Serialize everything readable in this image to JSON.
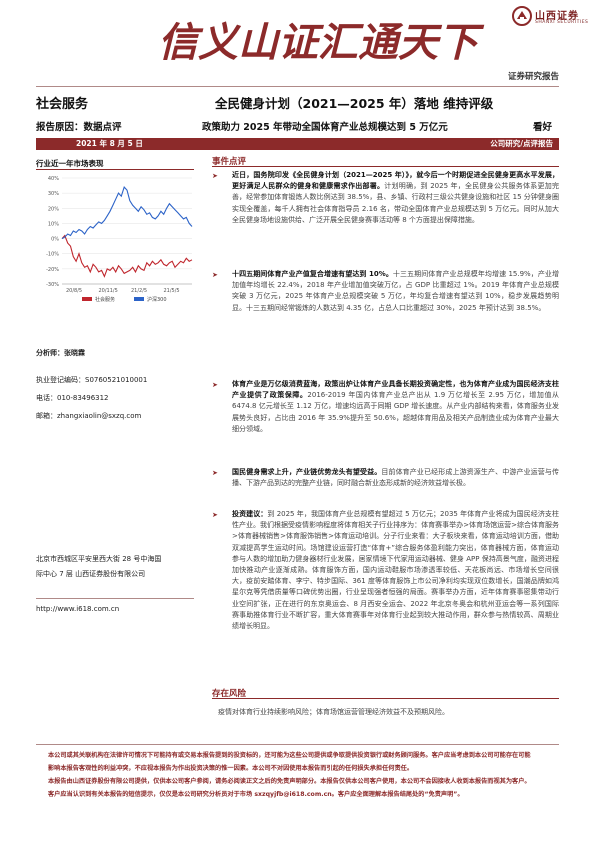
{
  "header": {
    "brand_cn": "山西证券",
    "brand_en": "SHANXI SECURITIES",
    "slogan": "信义山证汇通天下",
    "report_type": "证券研究报告"
  },
  "report": {
    "industry": "社会服务",
    "title": "全民健身计划（2021—2025 年）落地  维持评级",
    "reason": "报告原因：数据点评",
    "subtitle": "政策助力 2025 年带动全国体育产业总规模达到 5 万亿元",
    "rating": "看好",
    "date": "2021 年 8 月 5 日",
    "dept": "公司研究/点评报告"
  },
  "sidebar": {
    "chart_title": "行业近一年市场表现",
    "analyst_label": "分析师：",
    "analyst_name": "张晓霖",
    "cert_label": "执业登记编码：",
    "cert_no": "S0760521010001",
    "phone_label": "电话：",
    "phone": "010-83496312",
    "email_label": "邮箱：",
    "email": "zhangxiaolin@sxzq.com",
    "address_line1": "北京市西城区平安里西大街 28 号中海国",
    "address_line2": "际中心 7 层  山西证券股份有限公司",
    "website": "http://www.i618.com.cn"
  },
  "chart_data": {
    "type": "line",
    "x_ticks": [
      "20/8/5",
      "20/11/5",
      "21/2/5",
      "21/5/5"
    ],
    "y_ticks": [
      "40%",
      "30%",
      "20%",
      "10%",
      "0%",
      "-10%",
      "-20%",
      "-30%"
    ],
    "ylim": [
      -30,
      40
    ],
    "series": [
      {
        "name": "社会服务",
        "color": "#c0262d",
        "values": [
          0,
          2,
          -3,
          -5,
          -12,
          -15,
          -10,
          -16,
          -19,
          -18,
          -22,
          -17,
          -19,
          -22,
          -21,
          -25,
          -20,
          -21,
          -19,
          -22,
          -18,
          -20,
          -23,
          -22,
          -21,
          -19,
          -22,
          -18,
          -20,
          -21,
          -16,
          -18,
          -15,
          -17,
          -16,
          -14,
          -17,
          -18,
          -16,
          -15,
          -19,
          -17,
          -15,
          -16,
          -13,
          -15,
          -14
        ]
      },
      {
        "name": "沪深300",
        "color": "#2c63c8",
        "values": [
          0,
          1,
          3,
          2,
          5,
          4,
          6,
          5,
          3,
          6,
          8,
          7,
          9,
          11,
          10,
          12,
          15,
          18,
          22,
          26,
          30,
          28,
          34,
          32,
          25,
          22,
          20,
          18,
          21,
          19,
          16,
          17,
          14,
          13,
          15,
          18,
          16,
          20,
          23,
          21,
          19,
          17,
          15,
          13,
          14,
          10,
          8
        ]
      }
    ]
  },
  "body": {
    "event_heading": "事件点评",
    "p1_lead": "近日，国务院印发《全民健身计划（2021—2025 年）》，就今后一个时期促进全民健身更高水平发展，更好满足人民群众的健身和健康需求作出部署。",
    "p1_rest": "计划明确，到 2025 年，全民健身公共服务体系更加完善，经常参加体育锻炼人数比例达到 38.5%，县、乡镇、行政村三级公共健身设施和社区 15 分钟健身圈实现全覆盖，每千人拥有社会体育指导员 2.16 名，带动全国体育产业总规模达到 5 万亿元。同时从加大全民健身场地设施供给、广泛开展全民健身赛事活动等 8 个方面提出保障措施。",
    "p2_lead": "十四五期间体育产业产值复合增速有望达到 10%。",
    "p2_rest": "十三五期间体育产业总规模年均增速 15.9%，产业增加值年均增长 22.4%，2018 年产业增加值突破万亿，占 GDP 比重超过 1%。2019 年体育产业总规模突破 3 万亿元，2025 年体育产业总规模突破 5 万亿，年均复合增速有望达到 10%，稳步发展趋势明显。十三五期间经常锻炼的人数达到 4.35 亿，占总人口比重超过 30%，2025 年预计达到 38.5%。",
    "p3_lead": "体育产业是万亿级消费蓝海，政策出炉让体育产业具备长期投资确定性，也为体育产业成为国民经济支柱产业提供了政策保障。",
    "p3_rest": "2016-2019 年国内体育产业总产出从 1.9 万亿增长至 2.95 万亿，增加值从 6474.8 亿元增长至 1.12 万亿，增速均远高于同期 GDP 增长速度。从产业内部结构来看，体育服务业发展势头良好，占比由 2016 年 35.9%提升至 50.6%，超越体育用品及相关产品制造业成为体育产业最大细分领域。",
    "p4_lead": "国民健身需求上升，产业链优势龙头有望受益。",
    "p4_rest": "目前体育产业已经形成上游资源生产、中游产业运营与传播、下游产品到达的完整产业链，同时融合新业态形成新的经济效益增长极。",
    "p5_lead": "投资建议：",
    "p5_rest": "到 2025 年，我国体育产业总规模有望超过 5 万亿元；2035 年体育产业将成为国民经济支柱性产业。我们根据受疫情影响程度将体育相关子行业排序为：体育赛事举办>体育场馆运营>综合体育服务>体育器械销售>体育服饰销售>体育运动培训。分子行业来看：大子板块来看，体育运动培训方面，借助双减提高学生运动时间。场馆建设运营打造“体育+”综合服务体盈利能力突出，体育器械方面，体育运动参与人数的增加助力健身器材行业发展，居家情境下代家用运动器械、健身 APP 保持高景气度，融资进程加快推动产业逐渐成熟。体育服饰方面，国内运动鞋服市场渗透率较低、天花板尚远、市场增长空间很大，疫前安踏体育、李宁、特步国际、361 度等体育服饰上市公司净利均实现双位数增长，国潮品牌如鸿星尔克等凭借质量等口碑优势出圈，行业呈现强者恒强的局面。赛事举办方面，近年体育赛事密集带动行业空间扩张，正在进行的东京奥运会、8 月西安全运会、2022 年北京冬奥会和杭州亚运会等一系列国际赛事助推体育行业不断扩容，重大体育赛事年对体育行业起到较大推动作用，群众参与热情较高、周期业绩增长明显。",
    "risk_heading": "存在风险",
    "risk_text": "疫情对体育行业持续影响风险；体育场馆运营管理经济效益不及预期风险。"
  },
  "footer": {
    "line1": "本公司或其关联机构在法律许可情况下可能持有或交易本报告提到的投资标的，还可能为这些公司提供或争取提供投资银行或财务顾问服务。客户应当考虑到本公司可能存在可能",
    "line2": "影响本报告客观性的利益冲突，不应视本报告为作出投资决策的惟一因素。本公司不对因使用本报告而引起的任何损失承担任何责任。",
    "line3": "本报告由山西证券股份有限公司提供，仅供本公司客户参阅，请务必阅读正文之后的免责声明部分。本报告仅供本公司客户使用，本公司不会因接收人收到本报告而视其为客户。",
    "line4": "客户应当认识到有关本报告的短信提示，仅仅是本公司研究分析员对于市场 sxzqyjfb@i618.com.cn。客户应全面理解本报告结尾处的“免责声明”。"
  }
}
